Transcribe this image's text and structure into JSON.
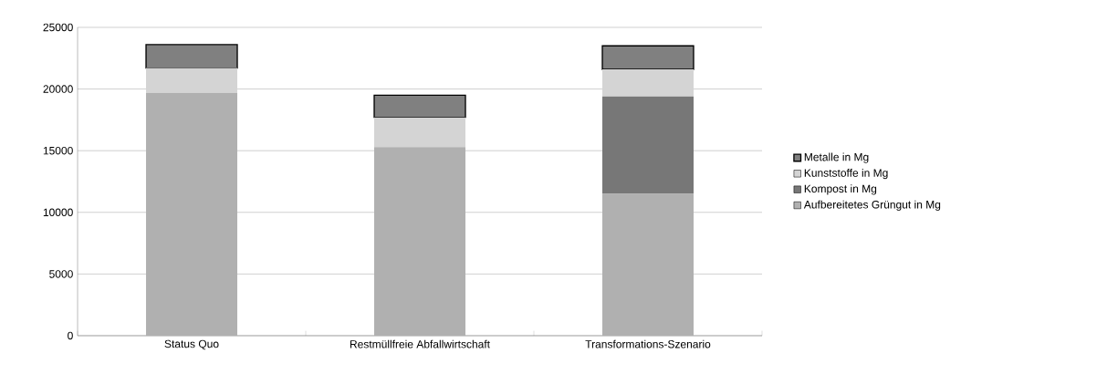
{
  "chart_data": {
    "type": "bar",
    "stacked": true,
    "categories": [
      "Status Quo",
      "Restmüllfreie Abfallwirtschaft",
      "Transformations-Szenario"
    ],
    "series": [
      {
        "name": "Aufbereitetes Grüngut in Mg",
        "color": "#b0b0b0",
        "values": [
          19700,
          15300,
          11500
        ]
      },
      {
        "name": "Kompost in Mg",
        "color": "#777777",
        "values": [
          0,
          0,
          7900
        ]
      },
      {
        "name": "Kunststoffe in Mg",
        "color": "#d4d4d4",
        "values": [
          2000,
          2400,
          2200
        ]
      },
      {
        "name": "Metalle in Mg",
        "color": "#808080",
        "values": [
          1900,
          1800,
          1900
        ]
      }
    ],
    "ylim": [
      0,
      25000
    ],
    "yticks": [
      0,
      5000,
      10000,
      15000,
      20000,
      25000
    ],
    "grid": "y",
    "legend": "right"
  }
}
